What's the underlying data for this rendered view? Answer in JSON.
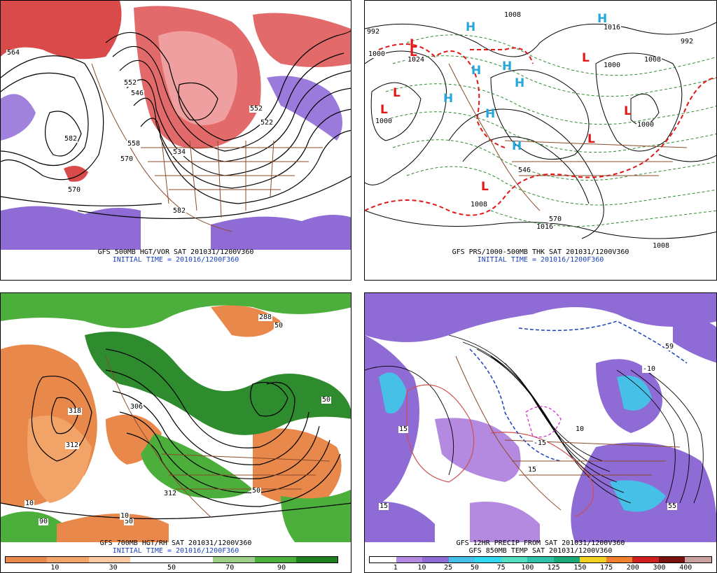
{
  "panels": {
    "top_left": {
      "caption_line1": "GFS 500MB HGT/VOR SAT 201031/1200V360",
      "caption_line2": "INITIAL TIME = 201016/1200F360",
      "contour_labels": [
        "564",
        "582",
        "570",
        "552",
        "570",
        "558",
        "534",
        "522",
        "552",
        "582",
        "546"
      ]
    },
    "top_right": {
      "caption_line1": "GFS PRS/1000-500MB THK SAT 201031/1200V360",
      "caption_line2": "INITIAL TIME = 201016/1200F360",
      "contour_labels": [
        "1008",
        "992",
        "1000",
        "1000",
        "1008",
        "1000",
        "1016",
        "1008",
        "1016",
        "1000",
        "992",
        "1024",
        "546",
        "570",
        "1008"
      ],
      "highs": [
        "H",
        "H",
        "H",
        "H",
        "H",
        "H",
        "H",
        "H"
      ],
      "lows": [
        "L",
        "L",
        "L",
        "L",
        "L",
        "L",
        "L",
        "L"
      ]
    },
    "bottom_left": {
      "caption_line1": "GFS 700MB HGT/RH SAT 201031/1200V360",
      "caption_line2": "INITIAL TIME = 201016/1200F360",
      "contour_labels": [
        "318",
        "312",
        "306",
        "288",
        "50",
        "50",
        "10",
        "50",
        "312",
        "10",
        "90",
        "50"
      ],
      "colorbar_ticks": [
        "10",
        "30",
        "50",
        "70",
        "90"
      ],
      "colorbar_colors": [
        "#e8884a",
        "#f2a468",
        "#f8c8a0",
        "#ffffff",
        "#ffffff",
        "#9ccf8a",
        "#4caf3c",
        "#1e7d1e"
      ]
    },
    "bottom_right": {
      "caption_line1": "GFS 12HR PRECIP FROM SAT 201031/1200V360",
      "caption_line2": "GFS 850MB TEMP SAT 201031/1200V360",
      "contour_labels": [
        "15",
        "-10",
        "15",
        "59",
        "55",
        "-15",
        "15",
        "10"
      ],
      "colorbar_ticks": [
        "1",
        "10",
        "25",
        "50",
        "75",
        "100",
        "125",
        "150",
        "175",
        "200",
        "300",
        "400"
      ],
      "colorbar_colors": [
        "#ffffff",
        "#b38ae0",
        "#8f6bd6",
        "#47c0e8",
        "#2fd8f0",
        "#54e0c0",
        "#2fc2a8",
        "#1aa878",
        "#f0d020",
        "#f08030",
        "#d02020",
        "#7a1010",
        "#c8a0a0"
      ]
    }
  }
}
